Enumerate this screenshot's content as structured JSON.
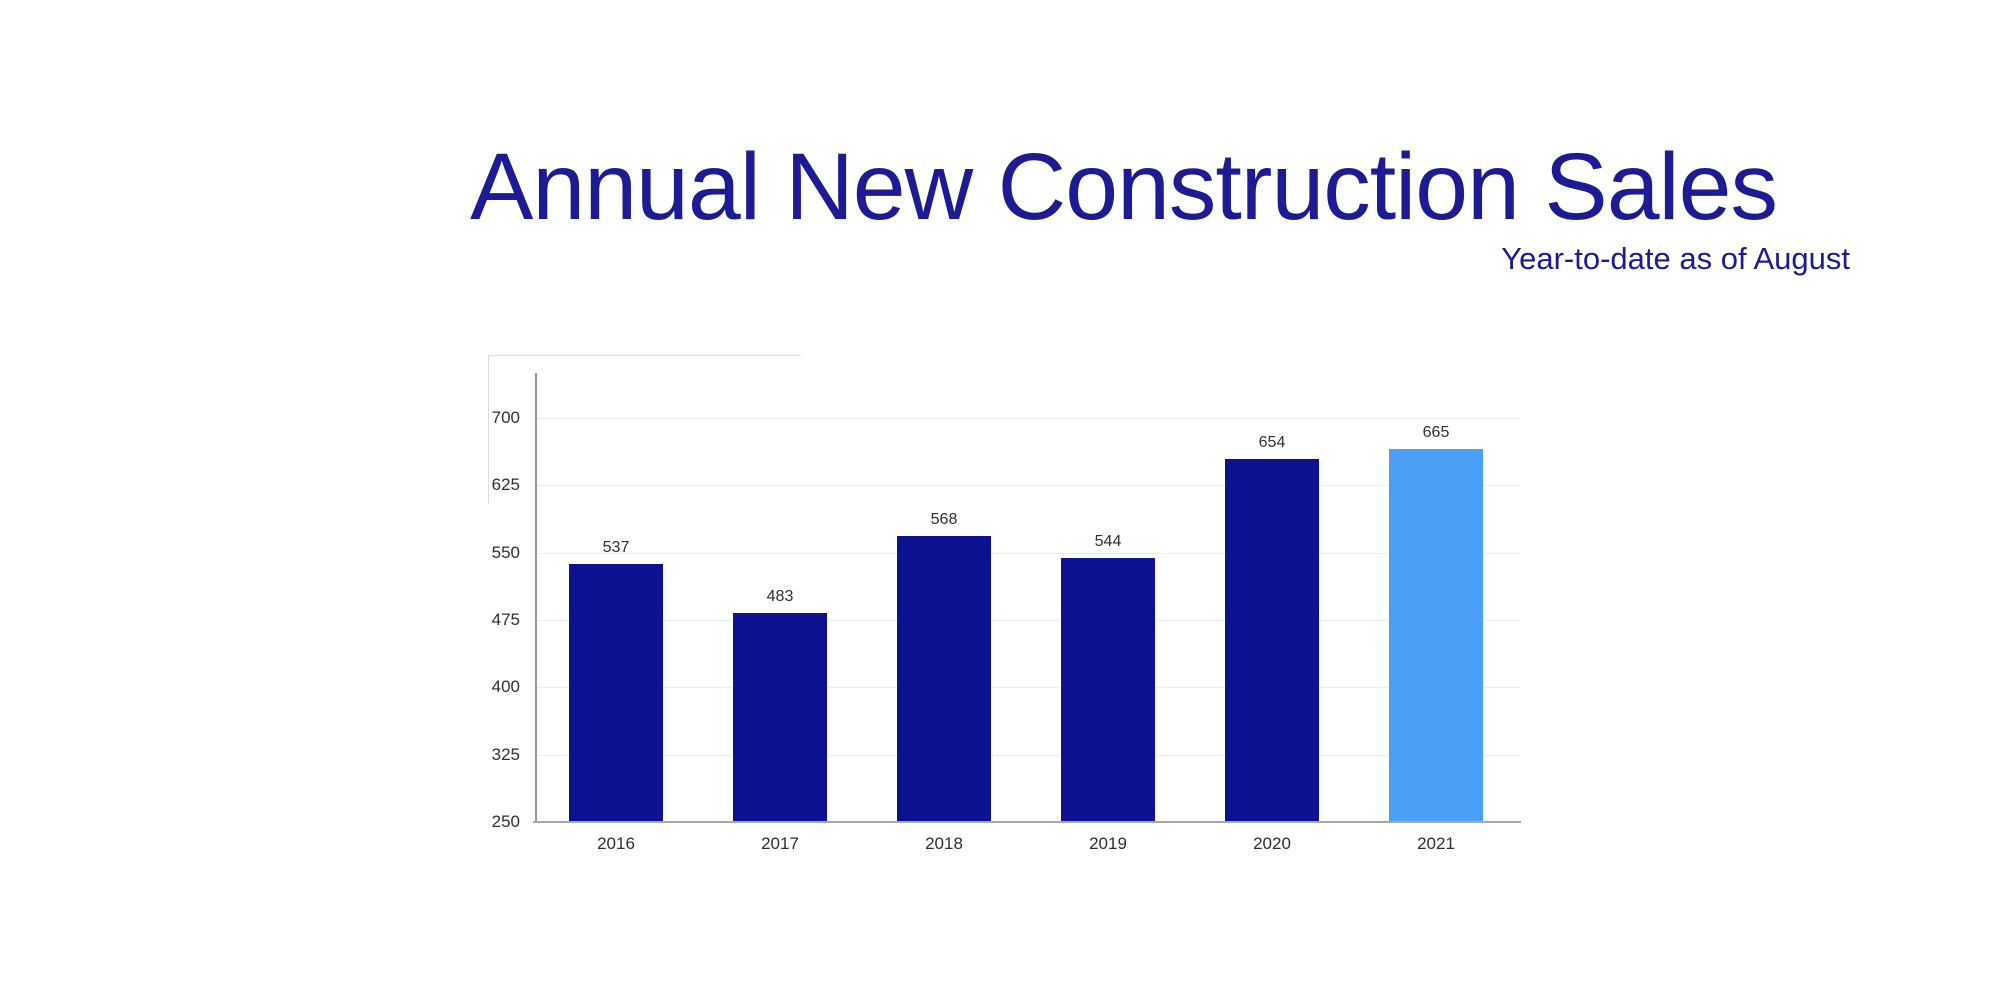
{
  "chart_data": {
    "type": "bar",
    "title": "Annual New Construction Sales",
    "subtitle": "Year-to-date as of August",
    "categories": [
      "2016",
      "2017",
      "2018",
      "2019",
      "2020",
      "2021"
    ],
    "values": [
      537,
      483,
      568,
      544,
      654,
      665
    ],
    "value_labels": [
      "537",
      "483",
      "568",
      "544",
      "654",
      "665"
    ],
    "highlight_index": 5,
    "ylim": [
      250,
      750
    ],
    "yticks": [
      250,
      325,
      400,
      475,
      550,
      625,
      700
    ],
    "xlabel": "",
    "ylabel": "",
    "grid": "horizontal",
    "legend": "none",
    "colors": {
      "bar_default": "#0f1290",
      "bar_highlight": "#4b9ff5",
      "title": "#1d1b94",
      "gridline": "#e4f0f8",
      "axis_line": "#999999",
      "baseline": "#a8a8a8",
      "tick_label": "#2f2f2f",
      "value_label": "#2f2f2f",
      "background": "#ffffff"
    }
  }
}
